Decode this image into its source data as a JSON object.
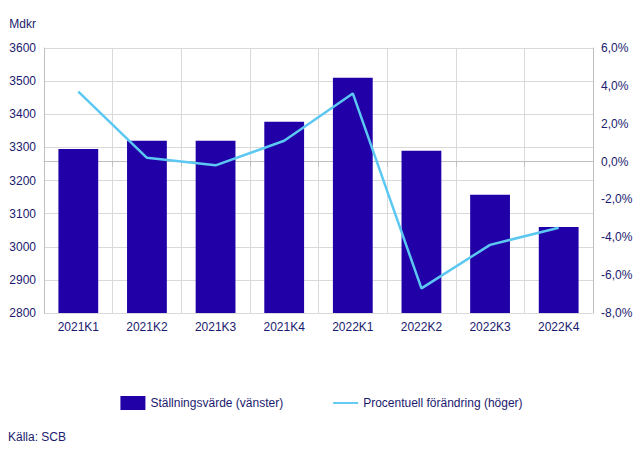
{
  "chart_data": {
    "type": "bar",
    "y_label": "Mdkr",
    "source": "Källa: SCB",
    "categories": [
      "2021K1",
      "2021K2",
      "2021K3",
      "2021K4",
      "2022K1",
      "2022K2",
      "2022K3",
      "2022K4"
    ],
    "series": [
      {
        "name": "Ställningsvärde (vänster)",
        "type": "bar",
        "color": "#2100a8",
        "values": [
          3295,
          3320,
          3320,
          3377,
          3510,
          3290,
          3157,
          3060
        ]
      },
      {
        "name": "Procentuell förändring (höger)",
        "type": "line",
        "axis": "y2",
        "color": "#5cc8f2",
        "values": [
          3.7,
          0.2,
          -0.2,
          1.1,
          3.6,
          -6.7,
          -4.4,
          -3.5
        ]
      }
    ],
    "ylim": [
      2800,
      3600
    ],
    "yticks": [
      2800,
      2900,
      3000,
      3100,
      3200,
      3300,
      3400,
      3500,
      3600
    ],
    "y2lim": [
      -8,
      6
    ],
    "y2ticks": [
      {
        "value": -8,
        "label": "-8,0%"
      },
      {
        "value": -6,
        "label": "-6,0%"
      },
      {
        "value": -4,
        "label": "-4,0%"
      },
      {
        "value": -2,
        "label": "-2,0%"
      },
      {
        "value": 0,
        "label": "0,0%"
      },
      {
        "value": 2,
        "label": "2,0%"
      },
      {
        "value": 4,
        "label": "4,0%"
      },
      {
        "value": 6,
        "label": "6,0%"
      }
    ],
    "grid": true,
    "legend": "bottom"
  }
}
